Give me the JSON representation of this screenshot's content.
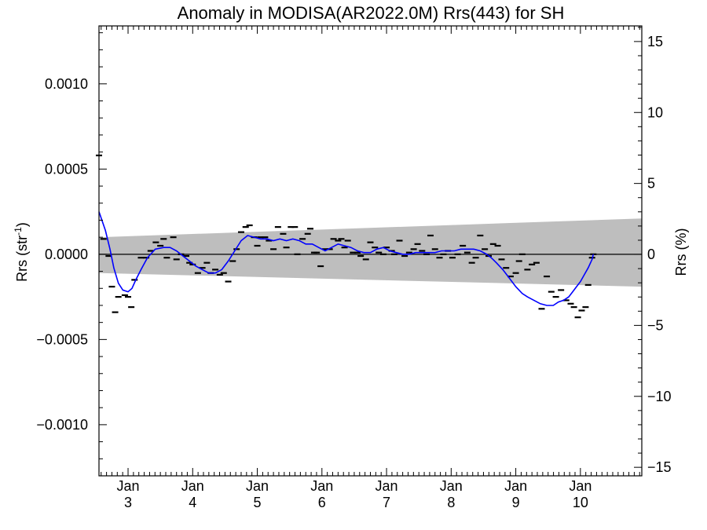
{
  "chart_data": {
    "type": "scatter",
    "title": "Anomaly in MODISA(AR2022.0M) Rrs(443) for SH",
    "ylabel": "Rrs (str",
    "ylabel_sup": "-1",
    "ylabel_close": ")",
    "y2label": "Rrs (%)",
    "xlim": [
      2.55,
      10.95
    ],
    "ylim": [
      -0.0013,
      0.00134
    ],
    "y2lim": [
      -15.6,
      16.1
    ],
    "x_ticks": [
      {
        "value": 3,
        "top": "Jan",
        "bottom": "3"
      },
      {
        "value": 4,
        "top": "Jan",
        "bottom": "4"
      },
      {
        "value": 5,
        "top": "Jan",
        "bottom": "5"
      },
      {
        "value": 6,
        "top": "Jan",
        "bottom": "6"
      },
      {
        "value": 7,
        "top": "Jan",
        "bottom": "7"
      },
      {
        "value": 8,
        "top": "Jan",
        "bottom": "8"
      },
      {
        "value": 9,
        "top": "Jan",
        "bottom": "9"
      },
      {
        "value": 10,
        "top": "Jan",
        "bottom": "10"
      }
    ],
    "y_ticks": [
      {
        "value": 0.001,
        "label": "0.0010"
      },
      {
        "value": 0.0005,
        "label": "0.0005"
      },
      {
        "value": 0.0,
        "label": "0.0000"
      },
      {
        "value": -0.0005,
        "label": "−0.0005"
      },
      {
        "value": -0.001,
        "label": "−0.0010"
      }
    ],
    "y2_ticks": [
      {
        "value": 15,
        "label": "15"
      },
      {
        "value": 10,
        "label": "10"
      },
      {
        "value": 5,
        "label": "5"
      },
      {
        "value": 0,
        "label": "0"
      },
      {
        "value": -5,
        "label": "−5"
      },
      {
        "value": -10,
        "label": "−10"
      },
      {
        "value": -15,
        "label": "−15"
      }
    ],
    "band": {
      "x": [
        2.55,
        10.95
      ],
      "upper": [
        0.0001,
        0.00021
      ],
      "lower": [
        -0.00011,
        -0.00019
      ],
      "color": "#bebebe"
    },
    "zero_line": 0.0,
    "points_color": "#000000",
    "smooth_color": "#0000ff",
    "points": [
      [
        2.55,
        0.00058
      ],
      [
        2.62,
        9e-05
      ],
      [
        2.7,
        -1e-05
      ],
      [
        2.75,
        -0.00019
      ],
      [
        2.8,
        -0.00034
      ],
      [
        2.85,
        -0.00025
      ],
      [
        2.95,
        -0.00024
      ],
      [
        3.0,
        -0.00025
      ],
      [
        3.05,
        -0.00031
      ],
      [
        3.1,
        -0.00015
      ],
      [
        3.2,
        -2e-05
      ],
      [
        3.28,
        -2e-05
      ],
      [
        3.35,
        2e-05
      ],
      [
        3.43,
        7e-05
      ],
      [
        3.5,
        5e-05
      ],
      [
        3.55,
        9e-05
      ],
      [
        3.6,
        -2e-05
      ],
      [
        3.7,
        0.0001
      ],
      [
        3.75,
        -3e-05
      ],
      [
        3.82,
        0.0
      ],
      [
        3.9,
        -1e-05
      ],
      [
        3.95,
        -5e-05
      ],
      [
        4.0,
        -6e-05
      ],
      [
        4.08,
        -0.00011
      ],
      [
        4.15,
        -8e-05
      ],
      [
        4.22,
        -5e-05
      ],
      [
        4.28,
        -0.00011
      ],
      [
        4.35,
        -9e-05
      ],
      [
        4.42,
        -0.00012
      ],
      [
        4.48,
        -0.00011
      ],
      [
        4.55,
        -0.00016
      ],
      [
        4.62,
        -4e-05
      ],
      [
        4.68,
        3e-05
      ],
      [
        4.75,
        0.00013
      ],
      [
        4.82,
        0.00016
      ],
      [
        4.88,
        0.00017
      ],
      [
        4.95,
        0.0001
      ],
      [
        5.0,
        5e-05
      ],
      [
        5.05,
        0.0001
      ],
      [
        5.12,
        0.0001
      ],
      [
        5.18,
        8e-05
      ],
      [
        5.25,
        3e-05
      ],
      [
        5.32,
        0.00016
      ],
      [
        5.4,
        0.00012
      ],
      [
        5.45,
        4e-05
      ],
      [
        5.52,
        0.00016
      ],
      [
        5.58,
        0.00016
      ],
      [
        5.62,
        0.0
      ],
      [
        5.7,
        9e-05
      ],
      [
        5.78,
        0.00012
      ],
      [
        5.82,
        0.00015
      ],
      [
        5.88,
        1e-05
      ],
      [
        5.92,
        1e-05
      ],
      [
        5.98,
        -7e-05
      ],
      [
        6.05,
        3e-05
      ],
      [
        6.12,
        3e-05
      ],
      [
        6.18,
        9e-05
      ],
      [
        6.25,
        8e-05
      ],
      [
        6.3,
        9e-05
      ],
      [
        6.35,
        4e-05
      ],
      [
        6.4,
        8e-05
      ],
      [
        6.48,
        1e-05
      ],
      [
        6.55,
        1e-05
      ],
      [
        6.6,
        -1e-05
      ],
      [
        6.68,
        -3e-05
      ],
      [
        6.75,
        7e-05
      ],
      [
        6.82,
        4e-05
      ],
      [
        6.88,
        1e-05
      ],
      [
        6.95,
        0.0
      ],
      [
        7.0,
        4e-05
      ],
      [
        7.08,
        2e-05
      ],
      [
        7.12,
        0.0
      ],
      [
        7.2,
        8e-05
      ],
      [
        7.28,
        -1e-05
      ],
      [
        7.35,
        1e-05
      ],
      [
        7.42,
        3e-05
      ],
      [
        7.48,
        6e-05
      ],
      [
        7.55,
        2e-05
      ],
      [
        7.62,
        0.0
      ],
      [
        7.68,
        0.00011
      ],
      [
        7.75,
        3e-05
      ],
      [
        7.82,
        -2e-05
      ],
      [
        7.88,
        0.0
      ],
      [
        7.95,
        2e-05
      ],
      [
        8.02,
        -2e-05
      ],
      [
        8.1,
        0.0
      ],
      [
        8.18,
        5e-05
      ],
      [
        8.25,
        1e-05
      ],
      [
        8.32,
        -5e-05
      ],
      [
        8.38,
        -2e-05
      ],
      [
        8.45,
        0.00011
      ],
      [
        8.52,
        3e-05
      ],
      [
        8.58,
        -1e-05
      ],
      [
        8.65,
        6e-05
      ],
      [
        8.72,
        5e-05
      ],
      [
        8.78,
        -3e-05
      ],
      [
        8.85,
        -8e-05
      ],
      [
        8.92,
        -0.00013
      ],
      [
        9.0,
        -0.00011
      ],
      [
        9.05,
        -4e-05
      ],
      [
        9.1,
        0.0
      ],
      [
        9.18,
        -9e-05
      ],
      [
        9.25,
        -6e-05
      ],
      [
        9.32,
        -5e-05
      ],
      [
        9.4,
        -0.00032
      ],
      [
        9.48,
        -0.00013
      ],
      [
        9.55,
        -0.00022
      ],
      [
        9.62,
        -0.00025
      ],
      [
        9.7,
        -0.00021
      ],
      [
        9.78,
        -0.00027
      ],
      [
        9.85,
        -0.00029
      ],
      [
        9.9,
        -0.00031
      ],
      [
        9.96,
        -0.00037
      ],
      [
        10.02,
        -0.00033
      ],
      [
        10.08,
        -0.00031
      ],
      [
        10.12,
        -0.00018
      ],
      [
        10.18,
        -2e-05
      ],
      [
        10.2,
        0.0
      ]
    ],
    "smooth": [
      [
        2.55,
        0.00025
      ],
      [
        2.65,
        0.00014
      ],
      [
        2.72,
        3e-05
      ],
      [
        2.78,
        -8e-05
      ],
      [
        2.85,
        -0.00017
      ],
      [
        2.92,
        -0.00021
      ],
      [
        3.0,
        -0.00022
      ],
      [
        3.06,
        -0.0002
      ],
      [
        3.12,
        -0.00015
      ],
      [
        3.2,
        -9e-05
      ],
      [
        3.3,
        -2e-05
      ],
      [
        3.42,
        3e-05
      ],
      [
        3.55,
        4e-05
      ],
      [
        3.65,
        4e-05
      ],
      [
        3.75,
        2e-05
      ],
      [
        3.85,
        -1e-05
      ],
      [
        3.95,
        -4e-05
      ],
      [
        4.05,
        -7e-05
      ],
      [
        4.15,
        -9e-05
      ],
      [
        4.25,
        -0.00011
      ],
      [
        4.35,
        -0.00011
      ],
      [
        4.45,
        -9e-05
      ],
      [
        4.55,
        -4e-05
      ],
      [
        4.65,
        2e-05
      ],
      [
        4.75,
        8e-05
      ],
      [
        4.85,
        0.00011
      ],
      [
        4.95,
        0.0001
      ],
      [
        5.05,
        9e-05
      ],
      [
        5.15,
        9e-05
      ],
      [
        5.25,
        8e-05
      ],
      [
        5.35,
        9e-05
      ],
      [
        5.45,
        8e-05
      ],
      [
        5.55,
        9e-05
      ],
      [
        5.65,
        8e-05
      ],
      [
        5.75,
        6e-05
      ],
      [
        5.85,
        6e-05
      ],
      [
        5.95,
        4e-05
      ],
      [
        6.05,
        2e-05
      ],
      [
        6.15,
        4e-05
      ],
      [
        6.25,
        6e-05
      ],
      [
        6.35,
        5e-05
      ],
      [
        6.45,
        4e-05
      ],
      [
        6.55,
        2e-05
      ],
      [
        6.65,
        1e-05
      ],
      [
        6.75,
        1e-05
      ],
      [
        6.85,
        3e-05
      ],
      [
        6.95,
        4e-05
      ],
      [
        7.05,
        2e-05
      ],
      [
        7.15,
        1e-05
      ],
      [
        7.25,
        0.0
      ],
      [
        7.35,
        0.0
      ],
      [
        7.45,
        1e-05
      ],
      [
        7.55,
        1e-05
      ],
      [
        7.65,
        1e-05
      ],
      [
        7.75,
        1e-05
      ],
      [
        7.85,
        2e-05
      ],
      [
        7.95,
        2e-05
      ],
      [
        8.05,
        2e-05
      ],
      [
        8.15,
        3e-05
      ],
      [
        8.25,
        3e-05
      ],
      [
        8.35,
        3e-05
      ],
      [
        8.45,
        2e-05
      ],
      [
        8.55,
        0.0
      ],
      [
        8.62,
        -2e-05
      ],
      [
        8.7,
        -5e-05
      ],
      [
        8.8,
        -9e-05
      ],
      [
        8.9,
        -0.00014
      ],
      [
        9.0,
        -0.00019
      ],
      [
        9.1,
        -0.00023
      ],
      [
        9.18,
        -0.00025
      ],
      [
        9.28,
        -0.00027
      ],
      [
        9.38,
        -0.00029
      ],
      [
        9.48,
        -0.0003
      ],
      [
        9.58,
        -0.0003
      ],
      [
        9.66,
        -0.00028
      ],
      [
        9.74,
        -0.00027
      ],
      [
        9.82,
        -0.00025
      ],
      [
        9.88,
        -0.00022
      ],
      [
        9.94,
        -0.00019
      ],
      [
        10.0,
        -0.00016
      ],
      [
        10.06,
        -0.00012
      ],
      [
        10.12,
        -8e-05
      ],
      [
        10.18,
        -3e-05
      ],
      [
        10.2,
        0.0
      ]
    ]
  }
}
